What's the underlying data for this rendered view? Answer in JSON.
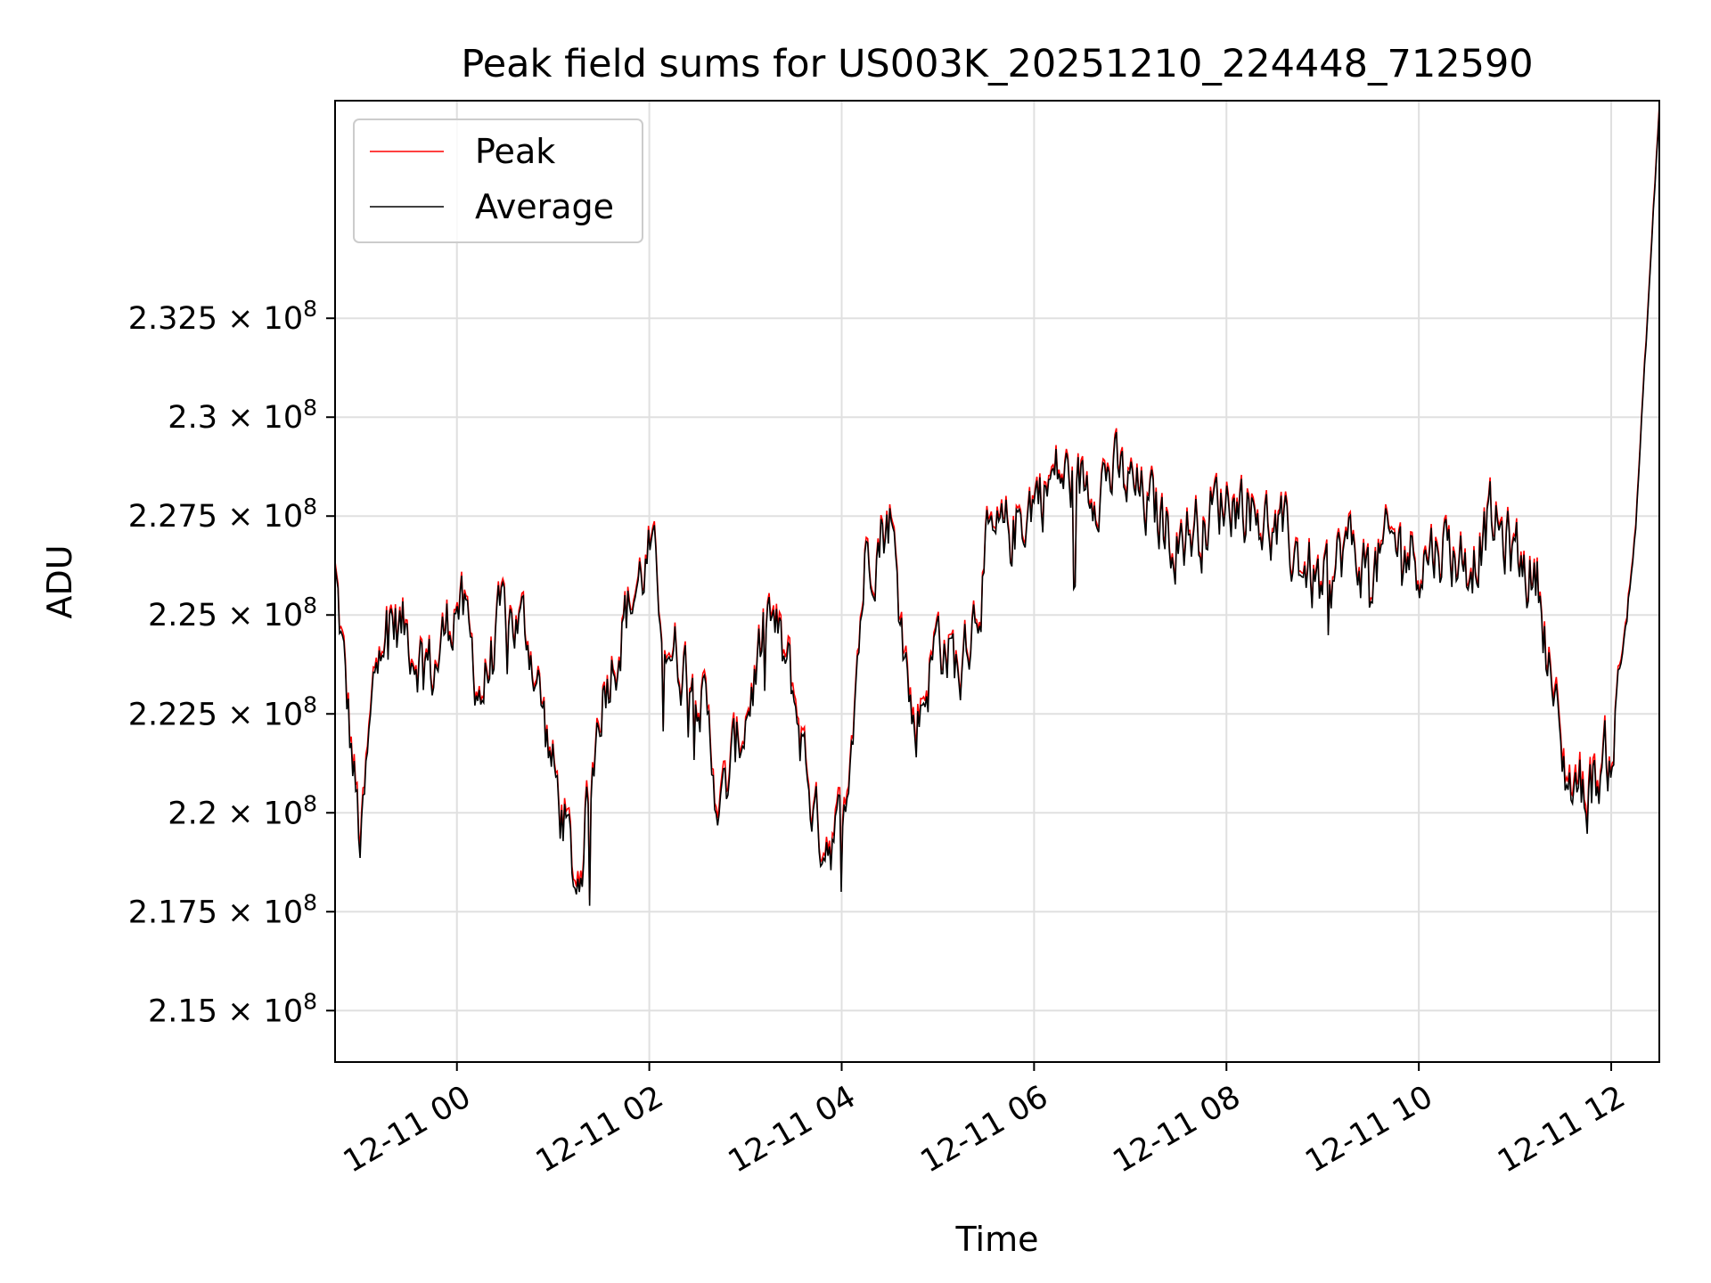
{
  "chart_data": {
    "type": "line",
    "title": "Peak field sums for US003K_20251210_224448_712590",
    "xlabel": "Time",
    "ylabel": "ADU",
    "x_range": [
      "2025-12-10 22:44",
      "2025-12-11 12:30"
    ],
    "ylim": [
      213700000,
      238000000
    ],
    "grid": true,
    "legend_position": "top-left",
    "x_ticks": [
      "12-11 00",
      "12-11 02",
      "12-11 04",
      "12-11 06",
      "12-11 08",
      "12-11 10",
      "12-11 12"
    ],
    "y_ticks": [
      {
        "value": 215000000,
        "mantissa": "2.15"
      },
      {
        "value": 217500000,
        "mantissa": "2.175"
      },
      {
        "value": 220000000,
        "mantissa": "2.2"
      },
      {
        "value": 222500000,
        "mantissa": "2.225"
      },
      {
        "value": 225000000,
        "mantissa": "2.25"
      },
      {
        "value": 227500000,
        "mantissa": "2.275"
      },
      {
        "value": 230000000,
        "mantissa": "2.3"
      },
      {
        "value": 232500000,
        "mantissa": "2.325"
      }
    ],
    "y_tick_suffix": "× 10",
    "y_tick_exponent": "8",
    "series": [
      {
        "name": "Peak",
        "color": "#ff0000"
      },
      {
        "name": "Average",
        "color": "#000000"
      }
    ],
    "x": [
      "2025-12-10 22:44",
      "2025-12-10 23:00",
      "2025-12-10 23:12",
      "2025-12-10 23:30",
      "2025-12-10 23:45",
      "2025-12-11 00:00",
      "2025-12-11 00:15",
      "2025-12-11 00:30",
      "2025-12-11 00:45",
      "2025-12-11 01:00",
      "2025-12-11 01:15",
      "2025-12-11 01:30",
      "2025-12-11 01:45",
      "2025-12-11 02:00",
      "2025-12-11 02:15",
      "2025-12-11 02:30",
      "2025-12-11 02:45",
      "2025-12-11 03:00",
      "2025-12-11 03:15",
      "2025-12-11 03:30",
      "2025-12-11 03:45",
      "2025-12-11 04:00",
      "2025-12-11 04:15",
      "2025-12-11 04:30",
      "2025-12-11 04:45",
      "2025-12-11 05:00",
      "2025-12-11 05:15",
      "2025-12-11 05:30",
      "2025-12-11 05:45",
      "2025-12-11 06:00",
      "2025-12-11 06:15",
      "2025-12-11 06:30",
      "2025-12-11 06:45",
      "2025-12-11 07:00",
      "2025-12-11 07:15",
      "2025-12-11 07:30",
      "2025-12-11 07:45",
      "2025-12-11 08:00",
      "2025-12-11 08:15",
      "2025-12-11 08:30",
      "2025-12-11 08:45",
      "2025-12-11 09:00",
      "2025-12-11 09:15",
      "2025-12-11 09:30",
      "2025-12-11 09:45",
      "2025-12-11 10:00",
      "2025-12-11 10:15",
      "2025-12-11 10:30",
      "2025-12-11 10:45",
      "2025-12-11 11:00",
      "2025-12-11 11:15",
      "2025-12-11 11:30",
      "2025-12-11 11:45",
      "2025-12-11 12:00",
      "2025-12-11 12:15",
      "2025-12-11 12:30"
    ],
    "average": [
      226000000,
      219000000,
      225000000,
      224500000,
      223500000,
      225500000,
      223000000,
      225000000,
      224500000,
      221000000,
      218000000,
      223000000,
      225000000,
      226500000,
      224000000,
      223500000,
      220000000,
      222500000,
      225000000,
      223000000,
      219500000,
      219500000,
      226500000,
      227500000,
      222000000,
      224500000,
      223500000,
      226500000,
      227000000,
      228000000,
      228500000,
      228300000,
      228600000,
      228200000,
      227500000,
      227000000,
      227300000,
      228000000,
      227800000,
      227000000,
      226500000,
      225500000,
      226800000,
      226000000,
      226800000,
      226500000,
      226800000,
      226300000,
      227300000,
      226500000,
      225800000,
      221000000,
      220500000,
      221500000,
      227000000,
      237800000
    ],
    "peak": [
      226100000,
      219200000,
      225100000,
      224600000,
      223600000,
      225600000,
      223100000,
      225100000,
      224600000,
      221100000,
      218200000,
      223100000,
      225100000,
      226600000,
      224100000,
      223600000,
      220200000,
      222600000,
      225100000,
      223200000,
      219600000,
      219700000,
      226600000,
      227600000,
      222200000,
      224600000,
      223600000,
      226600000,
      227100000,
      228100000,
      228600000,
      228400000,
      228700000,
      228300000,
      227600000,
      227100000,
      227400000,
      228100000,
      227900000,
      227100000,
      226600000,
      225600000,
      226900000,
      226100000,
      226900000,
      226600000,
      226900000,
      226400000,
      227400000,
      226600000,
      225900000,
      221200000,
      220700000,
      221600000,
      227100000,
      237900000
    ]
  }
}
